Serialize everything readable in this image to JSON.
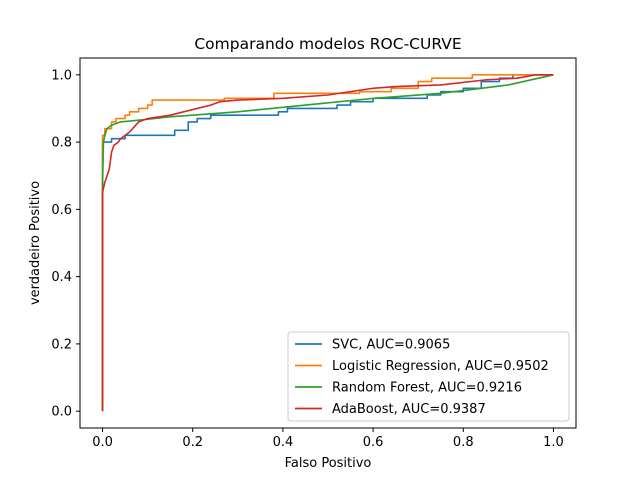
{
  "chart_data": {
    "type": "line",
    "title": "Comparando modelos ROC-CURVE",
    "xlabel": "Falso Positivo",
    "ylabel": "verdadeiro Positivo",
    "xlim": [
      -0.05,
      1.05
    ],
    "ylim": [
      -0.05,
      1.05
    ],
    "xticks": [
      {
        "value": 0.0,
        "label": "0.0"
      },
      {
        "value": 0.2,
        "label": "0.2"
      },
      {
        "value": 0.4,
        "label": "0.4"
      },
      {
        "value": 0.6,
        "label": "0.6"
      },
      {
        "value": 0.8,
        "label": "0.8"
      },
      {
        "value": 1.0,
        "label": "1.0"
      }
    ],
    "yticks": [
      {
        "value": 0.0,
        "label": "0.0"
      },
      {
        "value": 0.2,
        "label": "0.2"
      },
      {
        "value": 0.4,
        "label": "0.4"
      },
      {
        "value": 0.6,
        "label": "0.6"
      },
      {
        "value": 0.8,
        "label": "0.8"
      },
      {
        "value": 1.0,
        "label": "1.0"
      }
    ],
    "grid": false,
    "legend_position": "lower-right",
    "series": [
      {
        "name": "SVC, AUC=0.9065",
        "color": "#1f77b4",
        "points": [
          [
            0,
            0
          ],
          [
            0,
            0.8
          ],
          [
            0.02,
            0.8
          ],
          [
            0.02,
            0.81
          ],
          [
            0.05,
            0.81
          ],
          [
            0.05,
            0.82
          ],
          [
            0.16,
            0.82
          ],
          [
            0.16,
            0.835
          ],
          [
            0.19,
            0.835
          ],
          [
            0.19,
            0.86
          ],
          [
            0.21,
            0.86
          ],
          [
            0.21,
            0.87
          ],
          [
            0.24,
            0.87
          ],
          [
            0.24,
            0.88
          ],
          [
            0.39,
            0.88
          ],
          [
            0.39,
            0.89
          ],
          [
            0.41,
            0.89
          ],
          [
            0.41,
            0.9
          ],
          [
            0.52,
            0.9
          ],
          [
            0.52,
            0.91
          ],
          [
            0.55,
            0.91
          ],
          [
            0.55,
            0.92
          ],
          [
            0.6,
            0.92
          ],
          [
            0.6,
            0.93
          ],
          [
            0.72,
            0.93
          ],
          [
            0.72,
            0.94
          ],
          [
            0.75,
            0.94
          ],
          [
            0.75,
            0.95
          ],
          [
            0.8,
            0.95
          ],
          [
            0.8,
            0.96
          ],
          [
            0.84,
            0.96
          ],
          [
            0.84,
            0.98
          ],
          [
            0.88,
            0.98
          ],
          [
            0.88,
            0.99
          ],
          [
            0.91,
            0.99
          ],
          [
            0.91,
            1.0
          ],
          [
            1.0,
            1.0
          ]
        ]
      },
      {
        "name": "Logistic Regression, AUC=0.9502",
        "color": "#ff7f0e",
        "points": [
          [
            0,
            0
          ],
          [
            0,
            0.82
          ],
          [
            0.005,
            0.82
          ],
          [
            0.005,
            0.84
          ],
          [
            0.02,
            0.84
          ],
          [
            0.02,
            0.86
          ],
          [
            0.03,
            0.86
          ],
          [
            0.03,
            0.87
          ],
          [
            0.05,
            0.87
          ],
          [
            0.05,
            0.88
          ],
          [
            0.06,
            0.88
          ],
          [
            0.06,
            0.89
          ],
          [
            0.08,
            0.89
          ],
          [
            0.08,
            0.9
          ],
          [
            0.1,
            0.9
          ],
          [
            0.1,
            0.91
          ],
          [
            0.11,
            0.91
          ],
          [
            0.11,
            0.925
          ],
          [
            0.27,
            0.925
          ],
          [
            0.27,
            0.93
          ],
          [
            0.38,
            0.93
          ],
          [
            0.38,
            0.945
          ],
          [
            0.57,
            0.945
          ],
          [
            0.57,
            0.95
          ],
          [
            0.64,
            0.95
          ],
          [
            0.64,
            0.96
          ],
          [
            0.7,
            0.96
          ],
          [
            0.7,
            0.98
          ],
          [
            0.73,
            0.98
          ],
          [
            0.73,
            0.99
          ],
          [
            0.82,
            0.99
          ],
          [
            0.82,
            1.0
          ],
          [
            1.0,
            1.0
          ]
        ]
      },
      {
        "name": "Random Forest, AUC=0.9216",
        "color": "#2ca02c",
        "points": [
          [
            0,
            0
          ],
          [
            0,
            0.67
          ],
          [
            0.002,
            0.8
          ],
          [
            0.005,
            0.82
          ],
          [
            0.01,
            0.84
          ],
          [
            0.02,
            0.85
          ],
          [
            0.04,
            0.86
          ],
          [
            0.08,
            0.865
          ],
          [
            0.15,
            0.875
          ],
          [
            0.3,
            0.89
          ],
          [
            0.45,
            0.91
          ],
          [
            0.6,
            0.93
          ],
          [
            0.75,
            0.945
          ],
          [
            0.9,
            0.97
          ],
          [
            1.0,
            1.0
          ]
        ]
      },
      {
        "name": "AdaBoost, AUC=0.9387",
        "color": "#d62728",
        "points": [
          [
            0,
            0
          ],
          [
            0,
            0.65
          ],
          [
            0.005,
            0.68
          ],
          [
            0.01,
            0.7
          ],
          [
            0.015,
            0.72
          ],
          [
            0.02,
            0.77
          ],
          [
            0.025,
            0.79
          ],
          [
            0.035,
            0.8
          ],
          [
            0.04,
            0.81
          ],
          [
            0.05,
            0.82
          ],
          [
            0.06,
            0.83
          ],
          [
            0.07,
            0.845
          ],
          [
            0.08,
            0.86
          ],
          [
            0.1,
            0.87
          ],
          [
            0.15,
            0.88
          ],
          [
            0.18,
            0.89
          ],
          [
            0.21,
            0.9
          ],
          [
            0.24,
            0.91
          ],
          [
            0.26,
            0.92
          ],
          [
            0.3,
            0.925
          ],
          [
            0.4,
            0.93
          ],
          [
            0.5,
            0.94
          ],
          [
            0.6,
            0.96
          ],
          [
            0.65,
            0.965
          ],
          [
            0.75,
            0.97
          ],
          [
            0.85,
            0.985
          ],
          [
            0.92,
            0.99
          ],
          [
            0.96,
            1.0
          ],
          [
            1.0,
            1.0
          ]
        ]
      }
    ]
  }
}
